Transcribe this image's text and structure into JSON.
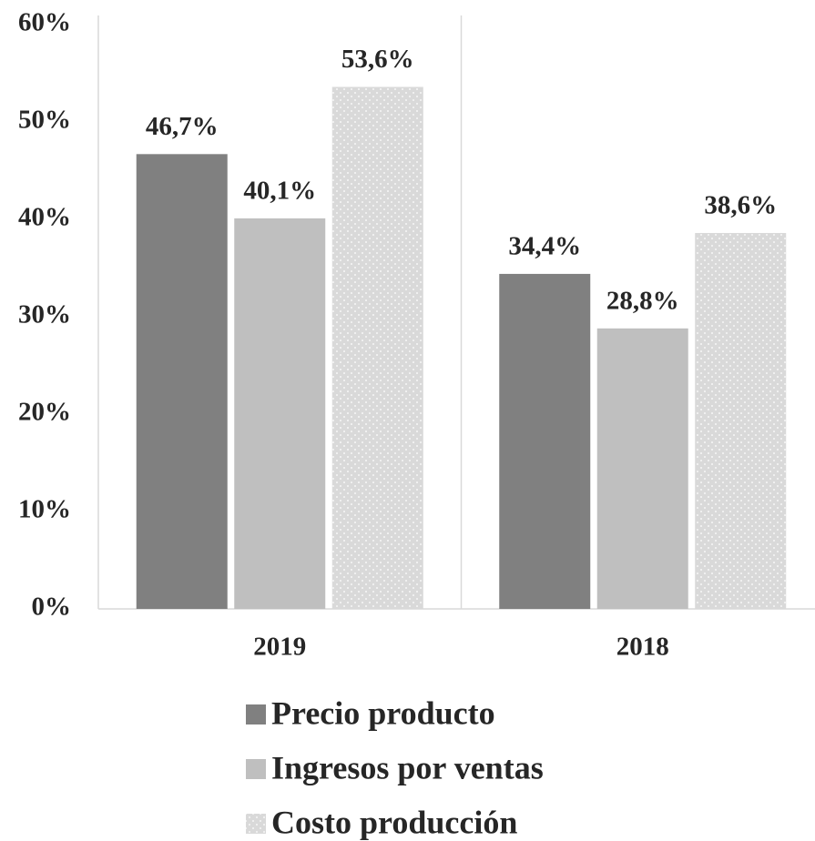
{
  "chart_data": {
    "type": "bar",
    "categories": [
      "2019",
      "2018"
    ],
    "series": [
      {
        "name": "Precio producto",
        "color": "#808080",
        "values": [
          46.7,
          34.4
        ],
        "value_labels": [
          "46,7%",
          "34,4%"
        ]
      },
      {
        "name": "Ingresos por ventas",
        "color": "#bfbfbf",
        "values": [
          40.1,
          28.8
        ],
        "value_labels": [
          "40,1%",
          "28,8%"
        ]
      },
      {
        "name": "Costo producción",
        "color": "#d9d9d9",
        "pattern": "dots",
        "values": [
          53.6,
          38.6
        ],
        "value_labels": [
          "53,6%",
          "38,6%"
        ]
      }
    ],
    "ylim": [
      0,
      60
    ],
    "yticks": [
      {
        "value": 0,
        "label": "0%"
      },
      {
        "value": 10,
        "label": "10%"
      },
      {
        "value": 20,
        "label": "20%"
      },
      {
        "value": 30,
        "label": "30%"
      },
      {
        "value": 40,
        "label": "40%"
      },
      {
        "value": 50,
        "label": "50%"
      },
      {
        "value": 60,
        "label": "60%"
      }
    ],
    "grid": false,
    "legend": "bottom"
  }
}
